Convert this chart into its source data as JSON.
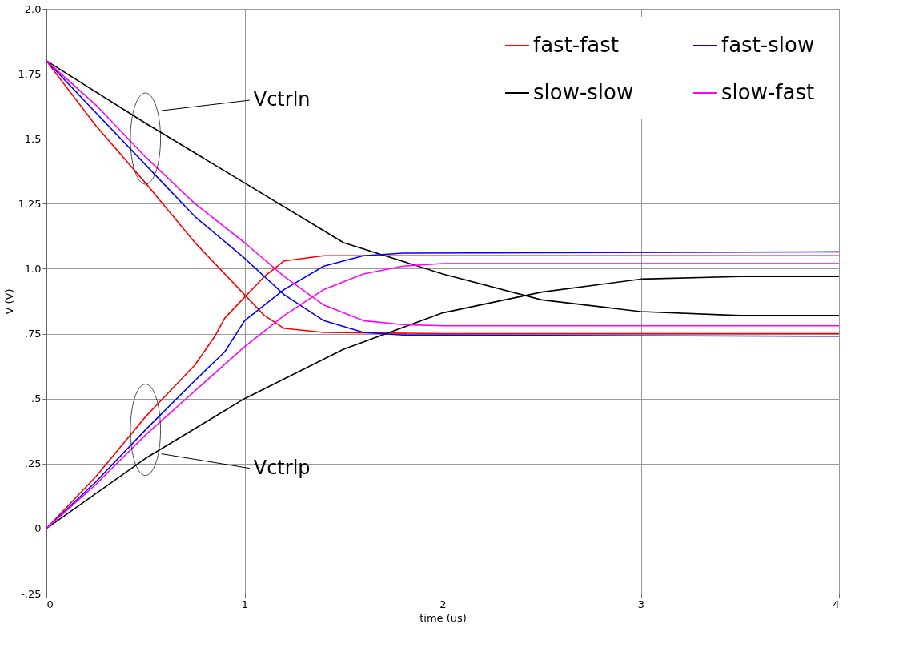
{
  "chart_data": {
    "type": "line",
    "xlabel": "time (us)",
    "ylabel": "V (V)",
    "xlim": [
      0,
      4
    ],
    "xticks": [
      0,
      1,
      2,
      3,
      4
    ],
    "ylim": [
      -0.25,
      2.0
    ],
    "yticks": [
      {
        "value": -0.25,
        "label": "-.25"
      },
      0,
      {
        "value": 0.25,
        "label": ".25"
      },
      {
        "value": 0.5,
        "label": ".5"
      },
      {
        "value": 0.75,
        "label": ".75"
      },
      {
        "value": 1.0,
        "label": "1.0"
      },
      1.25,
      1.5,
      1.75,
      {
        "value": 2.0,
        "label": "2.0"
      }
    ],
    "grid": true,
    "legend": "top right",
    "line_style": "solid",
    "marker": "none",
    "series": [
      {
        "name": "fast-fast",
        "color": "#ff0000",
        "x": [
          0,
          0.25,
          0.5,
          0.75,
          1.0,
          1.1,
          1.2,
          1.4,
          2,
          4
        ],
        "values": [
          1.8,
          1.55,
          1.33,
          1.1,
          0.9,
          0.82,
          0.77,
          0.755,
          0.75,
          0.75
        ]
      },
      {
        "color": "#ff0000",
        "x": [
          0,
          0.25,
          0.5,
          0.75,
          0.85,
          0.9,
          1.0,
          1.1,
          1.2,
          1.4,
          2,
          4
        ],
        "values": [
          0,
          0.2,
          0.43,
          0.63,
          0.74,
          0.81,
          0.89,
          0.97,
          1.03,
          1.05,
          1.05,
          1.05
        ]
      },
      {
        "name": "slow-slow",
        "color": "#000000",
        "x": [
          0,
          0.5,
          1.0,
          1.5,
          2,
          2.5,
          3,
          3.5,
          4
        ],
        "values": [
          1.8,
          1.56,
          1.33,
          1.1,
          0.98,
          0.88,
          0.835,
          0.82,
          0.82
        ]
      },
      {
        "color": "#000000",
        "x": [
          0,
          0.5,
          1.0,
          1.5,
          2,
          2.5,
          3,
          3.5,
          4
        ],
        "values": [
          0,
          0.27,
          0.5,
          0.69,
          0.83,
          0.91,
          0.96,
          0.97,
          0.97
        ]
      },
      {
        "name": "fast-slow",
        "color": "#0000ff",
        "x": [
          0,
          0.25,
          0.5,
          0.75,
          1.0,
          1.2,
          1.4,
          1.6,
          1.8,
          4
        ],
        "values": [
          1.8,
          1.6,
          1.4,
          1.2,
          1.04,
          0.9,
          0.8,
          0.755,
          0.745,
          0.74
        ]
      },
      {
        "color": "#0000ff",
        "x": [
          0,
          0.25,
          0.5,
          0.75,
          0.9,
          1.0,
          1.2,
          1.4,
          1.6,
          1.8,
          4
        ],
        "values": [
          0,
          0.18,
          0.38,
          0.57,
          0.68,
          0.8,
          0.92,
          1.01,
          1.05,
          1.06,
          1.065
        ]
      },
      {
        "name": "slow-fast",
        "color": "#ff00ff",
        "x": [
          0,
          0.25,
          0.5,
          0.75,
          1.0,
          1.2,
          1.4,
          1.6,
          1.8,
          2,
          4
        ],
        "values": [
          1.8,
          1.63,
          1.43,
          1.25,
          1.1,
          0.97,
          0.86,
          0.8,
          0.785,
          0.78,
          0.78
        ]
      },
      {
        "color": "#ff00ff",
        "x": [
          0,
          0.25,
          0.5,
          0.75,
          1.0,
          1.2,
          1.4,
          1.6,
          1.8,
          2,
          4
        ],
        "values": [
          0,
          0.17,
          0.36,
          0.53,
          0.7,
          0.82,
          0.92,
          0.98,
          1.01,
          1.02,
          1.02
        ]
      }
    ],
    "annotations": [
      "Vctrln",
      "Vctrlp"
    ]
  }
}
